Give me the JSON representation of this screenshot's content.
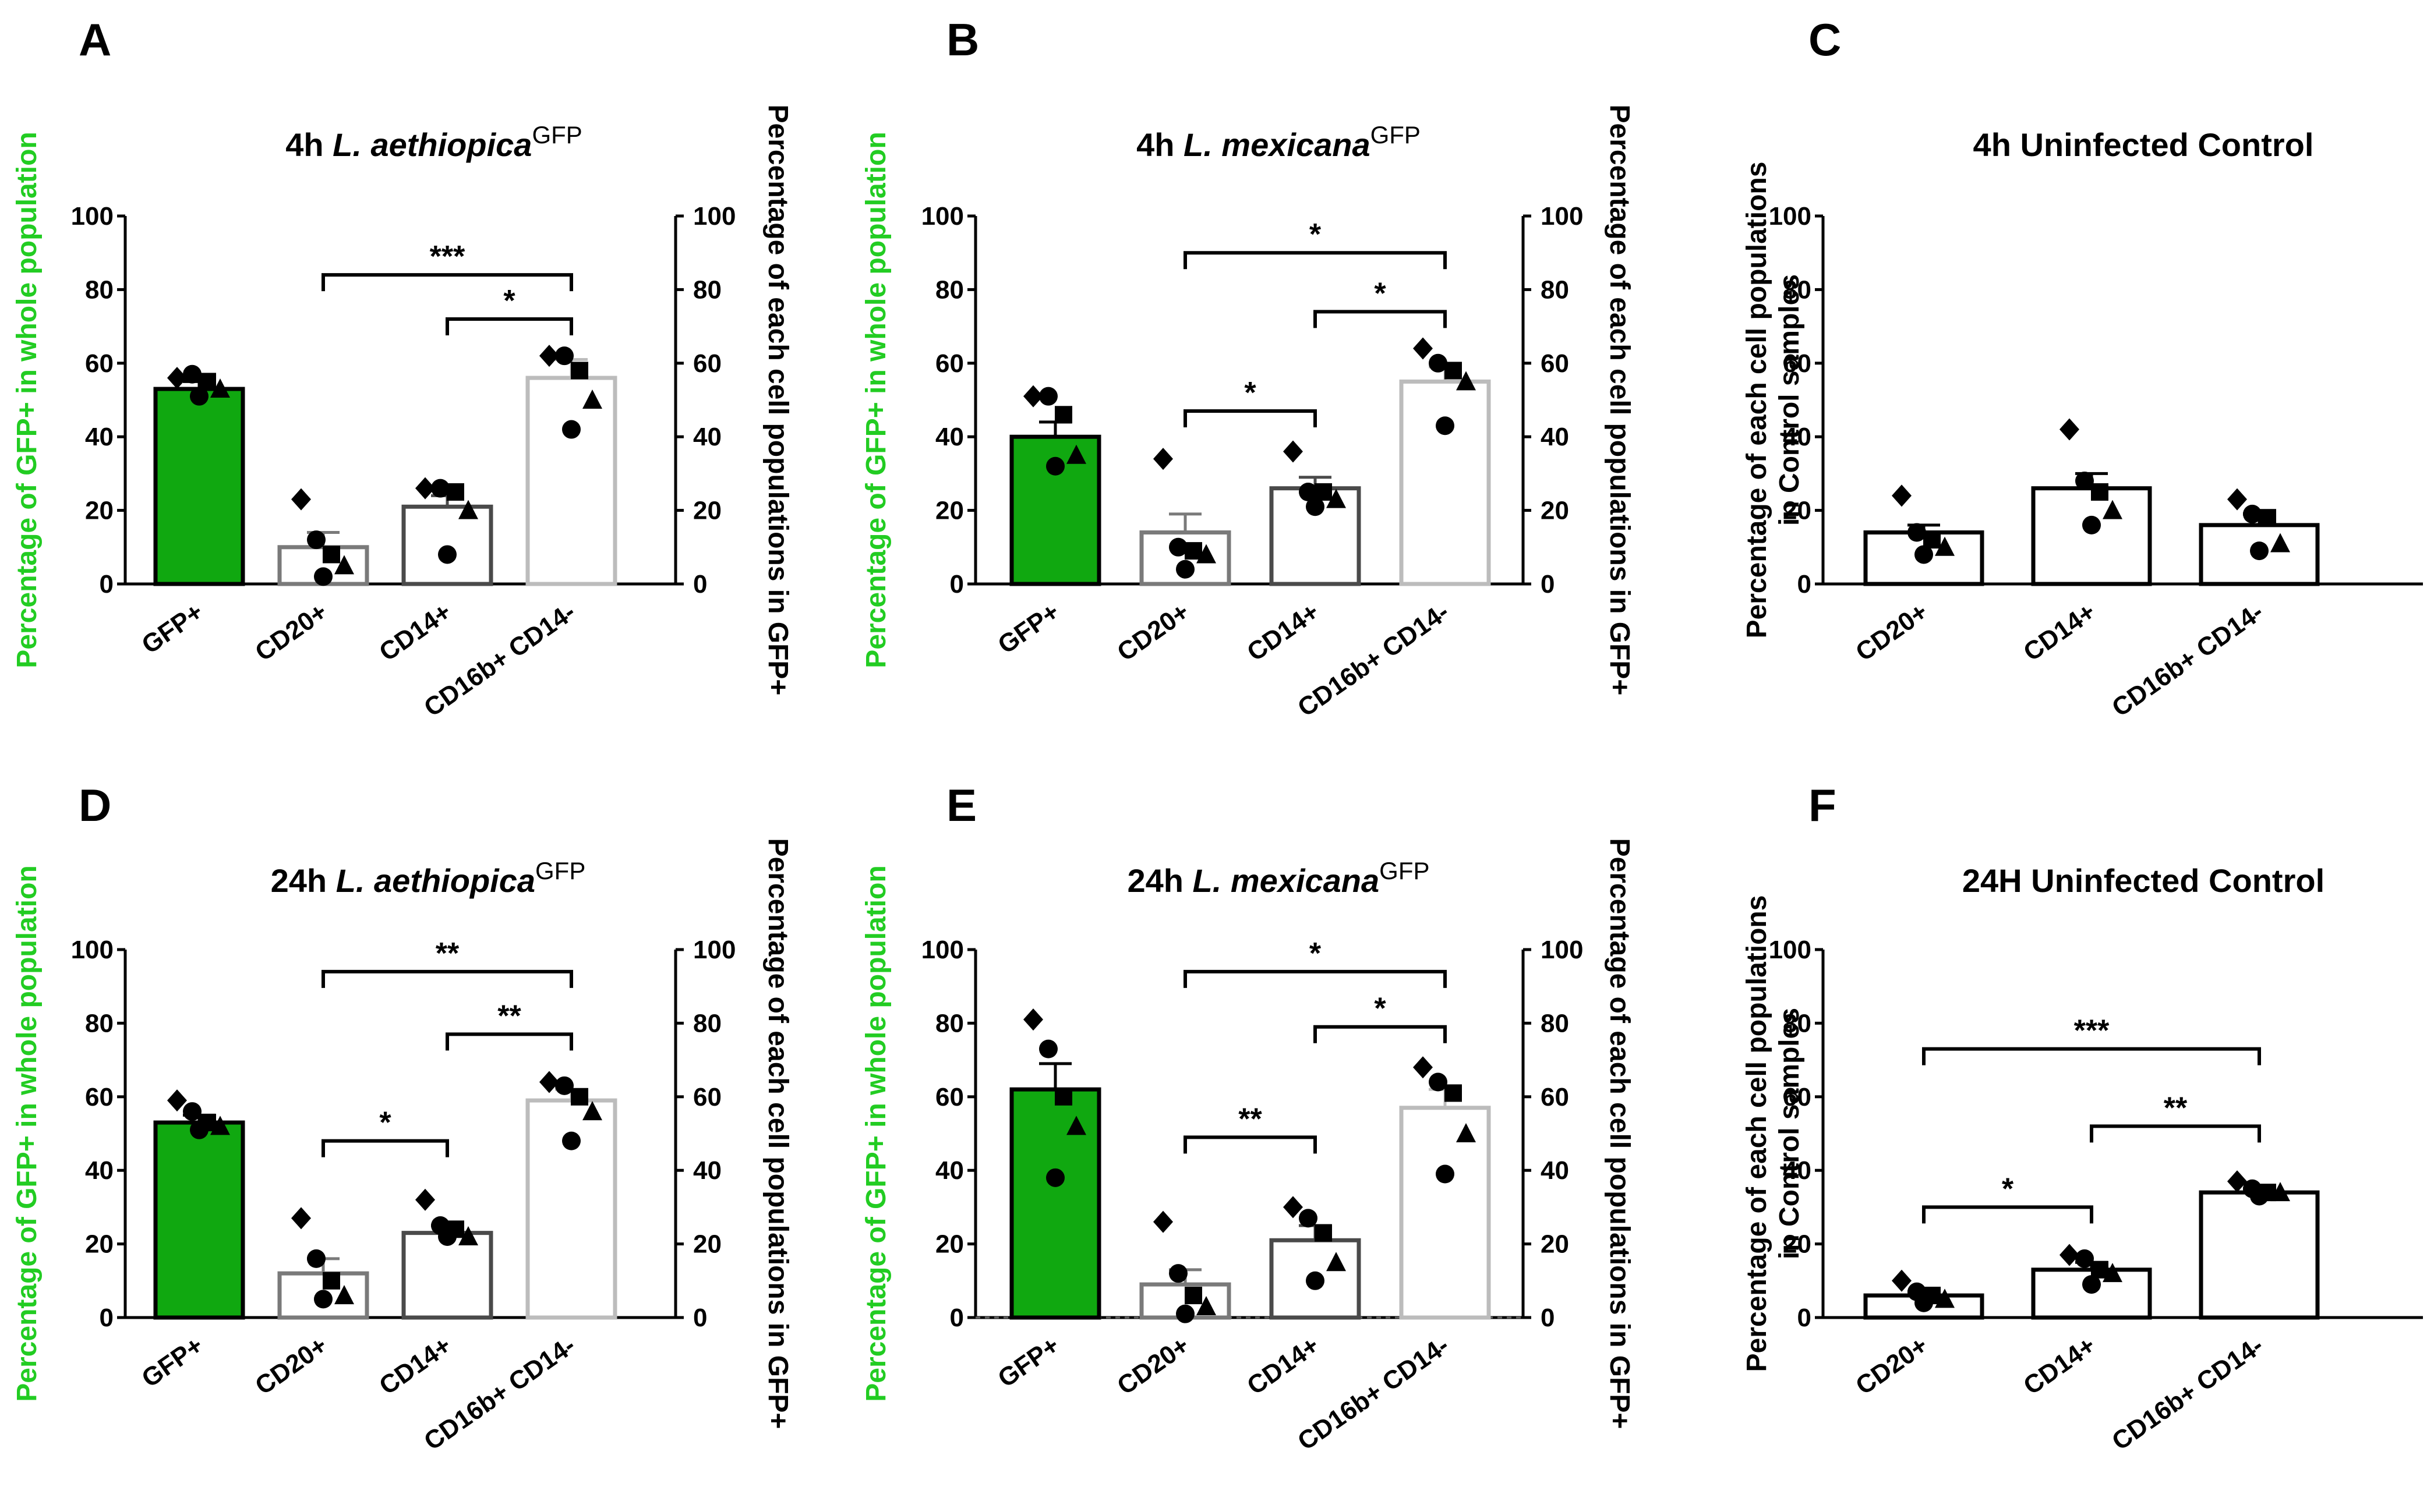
{
  "colors": {
    "gfp_green": "#10a810",
    "label_green": "#22cc22",
    "cd20_edge": "#7a7a7a",
    "cd14_edge": "#4a4a4a",
    "cd16_edge": "#bcbcbc",
    "ctrl_edge": "#000000"
  },
  "chart_data": [
    {
      "panel": "A",
      "type": "bar",
      "title_main": "4h ",
      "title_species": "L. aethiopica",
      "title_sup": "GFP",
      "categories": [
        "GFP+",
        "CD20+",
        "CD14+",
        "CD16b+ CD14-"
      ],
      "values": [
        53,
        10,
        21,
        56
      ],
      "sem": [
        2,
        4,
        3,
        5
      ],
      "points": [
        [
          56,
          57,
          55,
          53,
          51
        ],
        [
          23,
          12,
          8,
          5,
          2
        ],
        [
          26,
          26,
          25,
          20,
          8
        ],
        [
          62,
          62,
          58,
          50,
          42
        ]
      ],
      "ylabel_left": "Percentage of GFP+ in whole population",
      "ylabel_right": "Percentage of each cell populations in GFP+",
      "ylim": [
        0,
        100
      ],
      "yticks": [
        0,
        20,
        40,
        60,
        80,
        100
      ],
      "significance": [
        {
          "from": 1,
          "to": 3,
          "label": "***"
        },
        {
          "from": 2,
          "to": 3,
          "label": "*"
        }
      ]
    },
    {
      "panel": "B",
      "type": "bar",
      "title_main": "4h ",
      "title_species": "L. mexicana",
      "title_sup": "GFP",
      "categories": [
        "GFP+",
        "CD20+",
        "CD14+",
        "CD16b+ CD14-"
      ],
      "values": [
        40,
        14,
        26,
        55
      ],
      "sem": [
        4,
        5,
        3,
        4
      ],
      "points": [
        [
          51,
          51,
          46,
          35,
          32
        ],
        [
          34,
          10,
          9,
          8,
          4
        ],
        [
          36,
          25,
          25,
          23,
          21
        ],
        [
          64,
          60,
          58,
          55,
          43
        ]
      ],
      "ylabel_left": "Percentage of GFP+ in whole population",
      "ylabel_right": "Percentage of each cell populations in GFP+",
      "ylim": [
        0,
        100
      ],
      "yticks": [
        0,
        20,
        40,
        60,
        80,
        100
      ],
      "significance": [
        {
          "from": 1,
          "to": 3,
          "label": "*"
        },
        {
          "from": 2,
          "to": 3,
          "label": "*"
        },
        {
          "from": 1,
          "to": 2,
          "label": "*"
        }
      ]
    },
    {
      "panel": "C",
      "type": "bar",
      "title_main": "4h Uninfected Control",
      "title_species": "",
      "title_sup": "",
      "categories": [
        "CD20+",
        "CD14+",
        "CD16b+ CD14-"
      ],
      "values": [
        14,
        26,
        16
      ],
      "sem": [
        2,
        4,
        3
      ],
      "points": [
        [
          24,
          14,
          12,
          10,
          8
        ],
        [
          42,
          28,
          25,
          20,
          16
        ],
        [
          23,
          19,
          18,
          11,
          9
        ]
      ],
      "ylabel_left": "Percentage of each cell populations in Control samples",
      "ylabel_right": "",
      "ylim": [
        0,
        100
      ],
      "yticks": [
        0,
        20,
        40,
        60,
        80,
        100
      ],
      "significance": []
    },
    {
      "panel": "D",
      "type": "bar",
      "title_main": "24h ",
      "title_species": "L. aethiopica",
      "title_sup": "GFP",
      "categories": [
        "GFP+",
        "CD20+",
        "CD14+",
        "CD16b+ CD14-"
      ],
      "values": [
        53,
        12,
        23,
        59
      ],
      "sem": [
        2,
        4,
        2,
        3
      ],
      "points": [
        [
          59,
          56,
          53,
          52,
          51
        ],
        [
          27,
          16,
          10,
          6,
          5
        ],
        [
          32,
          25,
          24,
          22,
          22
        ],
        [
          64,
          63,
          60,
          56,
          48
        ]
      ],
      "ylabel_left": "Percentage of GFP+ in whole population",
      "ylabel_right": "Percentage of each cell populations in GFP+",
      "ylim": [
        0,
        100
      ],
      "yticks": [
        0,
        20,
        40,
        60,
        80,
        100
      ],
      "significance": [
        {
          "from": 1,
          "to": 3,
          "label": "**"
        },
        {
          "from": 2,
          "to": 3,
          "label": "**"
        },
        {
          "from": 1,
          "to": 2,
          "label": "*"
        }
      ]
    },
    {
      "panel": "E",
      "type": "bar",
      "title_main": "24h ",
      "title_species": "L. mexicana",
      "title_sup": "GFP",
      "categories": [
        "GFP+",
        "CD20+",
        "CD14+",
        "CD16b+ CD14-"
      ],
      "values": [
        62,
        9,
        21,
        57
      ],
      "sem": [
        7,
        4,
        4,
        5
      ],
      "points": [
        [
          81,
          73,
          60,
          52,
          38
        ],
        [
          26,
          12,
          6,
          3,
          1
        ],
        [
          30,
          27,
          23,
          15,
          10
        ],
        [
          68,
          64,
          61,
          50,
          39
        ]
      ],
      "ylabel_left": "Percentage of GFP+ in whole population",
      "ylabel_right": "Percentage of each cell populations in GFP+",
      "ylim": [
        0,
        100
      ],
      "yticks": [
        0,
        20,
        40,
        60,
        80,
        100
      ],
      "significance": [
        {
          "from": 1,
          "to": 3,
          "label": "*"
        },
        {
          "from": 2,
          "to": 3,
          "label": "*"
        },
        {
          "from": 1,
          "to": 2,
          "label": "**"
        }
      ]
    },
    {
      "panel": "F",
      "type": "bar",
      "title_main": "24H Uninfected Control",
      "title_species": "",
      "title_sup": "",
      "categories": [
        "CD20+",
        "CD14+",
        "CD16b+ CD14-"
      ],
      "values": [
        6,
        13,
        34
      ],
      "sem": [
        1,
        2,
        1
      ],
      "points": [
        [
          10,
          7,
          6,
          5,
          4
        ],
        [
          17,
          16,
          13,
          12,
          9
        ],
        [
          37,
          35,
          34,
          34,
          33
        ]
      ],
      "ylabel_left": "Percentage of each cell populations in Control samples",
      "ylabel_right": "",
      "ylim": [
        0,
        100
      ],
      "yticks": [
        0,
        20,
        40,
        60,
        80,
        100
      ],
      "significance": [
        {
          "from": 0,
          "to": 2,
          "label": "***"
        },
        {
          "from": 1,
          "to": 2,
          "label": "**"
        },
        {
          "from": 0,
          "to": 1,
          "label": "*"
        }
      ]
    }
  ]
}
